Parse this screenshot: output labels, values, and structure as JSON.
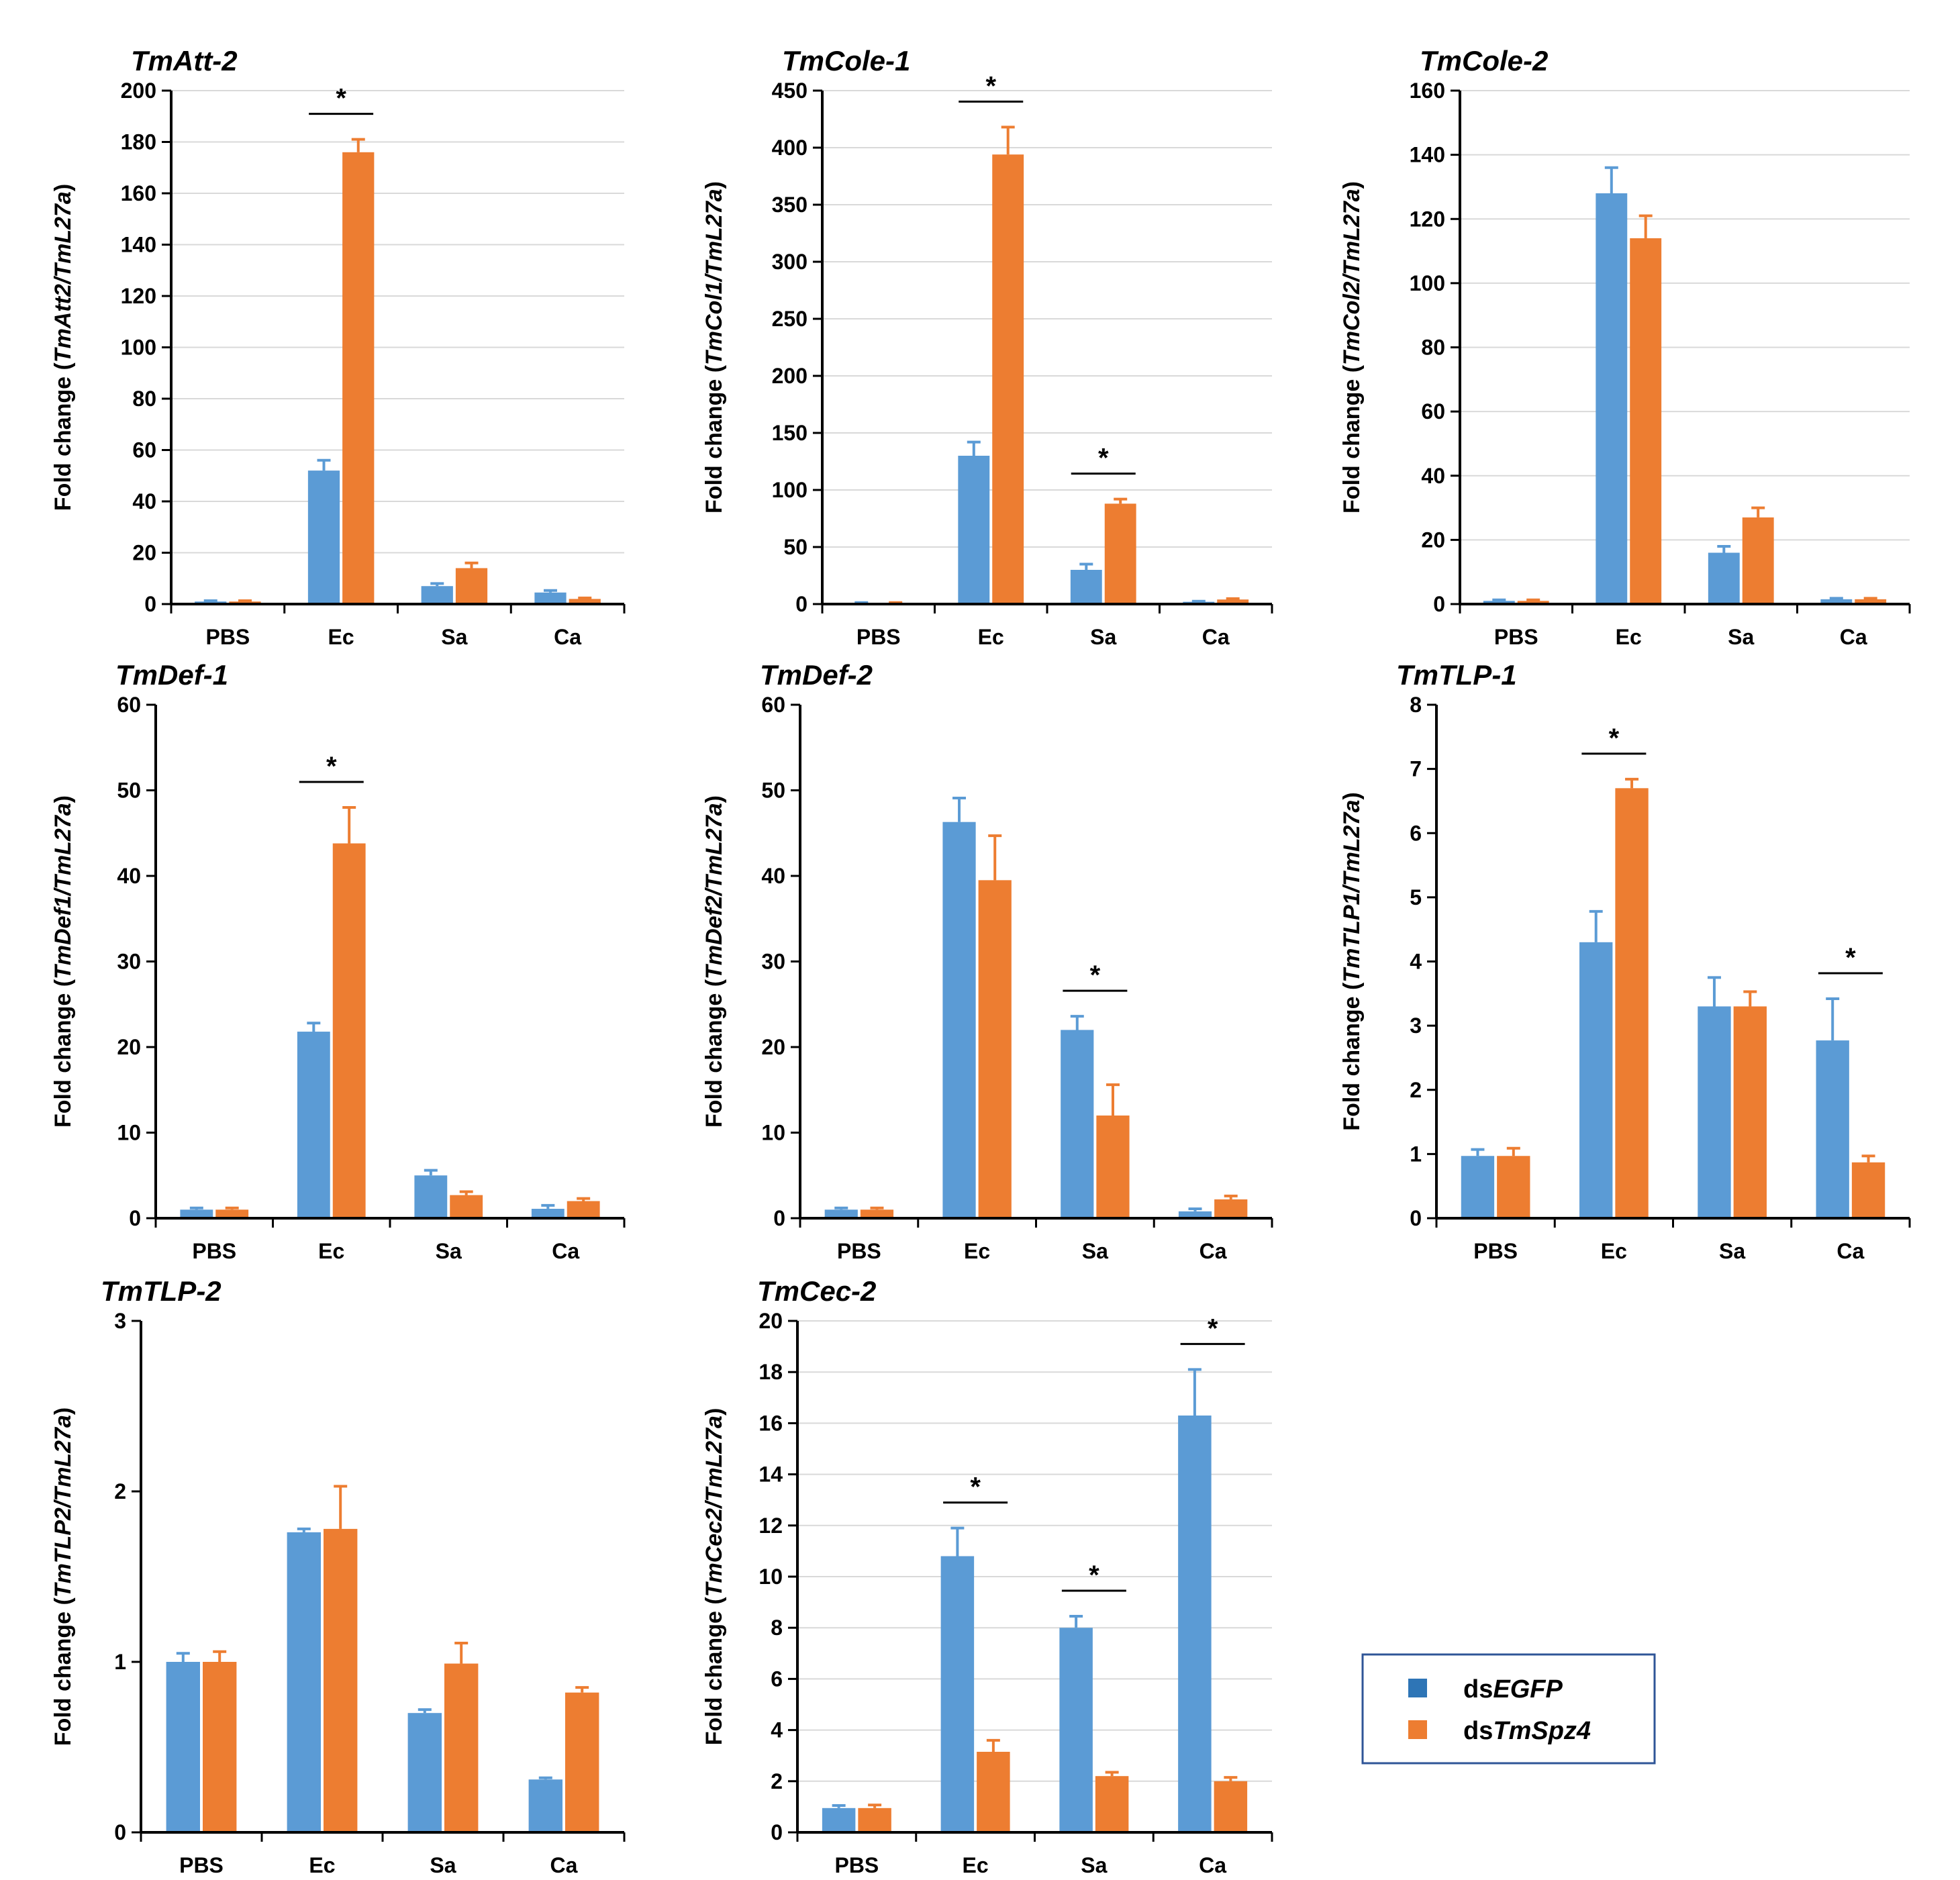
{
  "colors": {
    "dsEGFP": "#5B9BD5",
    "dsTmSpz4": "#ED7D31",
    "legend_dsEGFP": "#2E75B6",
    "grid": "#d9d9d9"
  },
  "legend": [
    {
      "prefix": "ds",
      "italic": "EGFP",
      "color": "#2E75B6"
    },
    {
      "prefix": "ds",
      "italic": "TmSpz4",
      "color": "#ED7D31"
    }
  ],
  "chart_data": [
    {
      "type": "bar",
      "title": "TmAtt-2",
      "ylabel": {
        "prefix": "Fold change (",
        "italic": "TmAtt2/TmL27a",
        "suffix": ")"
      },
      "categories": [
        "PBS",
        "Ec",
        "Sa",
        "Ca"
      ],
      "ylim": [
        0,
        200
      ],
      "yticks": [
        0,
        20,
        40,
        60,
        80,
        100,
        120,
        140,
        160,
        180,
        200
      ],
      "grid": true,
      "series": [
        {
          "values": [
            1,
            52,
            7,
            4.5
          ],
          "errors": [
            0.3,
            4,
            1,
            0.8
          ]
        },
        {
          "values": [
            1,
            176,
            14,
            2
          ],
          "errors": [
            0.3,
            5,
            2,
            0.4
          ]
        }
      ],
      "significance": [
        "",
        "*",
        "",
        ""
      ]
    },
    {
      "type": "bar",
      "title": "TmCole-1",
      "ylabel": {
        "prefix": "Fold change (",
        "italic": "TmCol1/TmL27a",
        "suffix": ")"
      },
      "categories": [
        "PBS",
        "Ec",
        "Sa",
        "Ca"
      ],
      "ylim": [
        0,
        450
      ],
      "yticks": [
        0,
        50,
        100,
        150,
        200,
        250,
        300,
        350,
        400,
        450
      ],
      "grid": true,
      "series": [
        {
          "values": [
            1,
            130,
            30,
            2
          ],
          "errors": [
            0.3,
            12,
            5,
            0.5
          ]
        },
        {
          "values": [
            1,
            394,
            88,
            4
          ],
          "errors": [
            0.3,
            24,
            4,
            0.8
          ]
        }
      ],
      "significance": [
        "",
        "*",
        "*",
        ""
      ]
    },
    {
      "type": "bar",
      "title": "TmCole-2",
      "ylabel": {
        "prefix": "Fold change (",
        "italic": "TmCol2/TmL27a",
        "suffix": ")"
      },
      "categories": [
        "PBS",
        "Ec",
        "Sa",
        "Ca"
      ],
      "ylim": [
        0,
        160
      ],
      "yticks": [
        0,
        20,
        40,
        60,
        80,
        100,
        120,
        140,
        160
      ],
      "grid": true,
      "series": [
        {
          "values": [
            1,
            128,
            16,
            1.5
          ],
          "errors": [
            0.3,
            8,
            2,
            0.3
          ]
        },
        {
          "values": [
            1,
            114,
            27,
            1.5
          ],
          "errors": [
            0.3,
            7,
            3,
            0.3
          ]
        }
      ],
      "significance": [
        "",
        "",
        "",
        ""
      ]
    },
    {
      "type": "bar",
      "title": "TmDef-1",
      "ylabel": {
        "prefix": "Fold change (",
        "italic": "TmDef1/TmL27a",
        "suffix": ")"
      },
      "categories": [
        "PBS",
        "Ec",
        "Sa",
        "Ca"
      ],
      "ylim": [
        0,
        60
      ],
      "yticks": [
        0,
        10,
        20,
        30,
        40,
        50,
        60
      ],
      "grid": false,
      "series": [
        {
          "values": [
            1,
            21.8,
            5,
            1.1
          ],
          "errors": [
            0.2,
            1,
            0.6,
            0.4
          ]
        },
        {
          "values": [
            1,
            43.8,
            2.7,
            2
          ],
          "errors": [
            0.2,
            4.2,
            0.4,
            0.3
          ]
        }
      ],
      "significance": [
        "",
        "*",
        "",
        ""
      ]
    },
    {
      "type": "bar",
      "title": "TmDef-2",
      "ylabel": {
        "prefix": "Fold change (",
        "italic": "TmDef2/TmL27a",
        "suffix": ")"
      },
      "categories": [
        "PBS",
        "Ec",
        "Sa",
        "Ca"
      ],
      "ylim": [
        0,
        60
      ],
      "yticks": [
        0,
        10,
        20,
        30,
        40,
        50,
        60
      ],
      "grid": false,
      "series": [
        {
          "values": [
            1,
            46.3,
            22,
            0.8
          ],
          "errors": [
            0.2,
            2.8,
            1.6,
            0.3
          ]
        },
        {
          "values": [
            1,
            39.5,
            12,
            2.2
          ],
          "errors": [
            0.2,
            5.2,
            3.6,
            0.4
          ]
        }
      ],
      "significance": [
        "",
        "",
        "*",
        ""
      ]
    },
    {
      "type": "bar",
      "title": "TmTLP-1",
      "ylabel": {
        "prefix": "Fold change (",
        "italic": "TmTLP1/TmL27a",
        "suffix": ")"
      },
      "categories": [
        "PBS",
        "Ec",
        "Sa",
        "Ca"
      ],
      "ylim": [
        0,
        8
      ],
      "yticks": [
        0,
        1,
        2,
        3,
        4,
        5,
        6,
        7,
        8
      ],
      "grid": false,
      "series": [
        {
          "values": [
            0.97,
            4.3,
            3.3,
            2.77
          ],
          "errors": [
            0.1,
            0.48,
            0.45,
            0.65
          ]
        },
        {
          "values": [
            0.97,
            6.7,
            3.3,
            0.87
          ],
          "errors": [
            0.12,
            0.14,
            0.23,
            0.1
          ]
        }
      ],
      "significance": [
        "",
        "*",
        "",
        "*"
      ]
    },
    {
      "type": "bar",
      "title": "TmTLP-2",
      "ylabel": {
        "prefix": "Fold change (",
        "italic": "TmTLP2/TmL27a",
        "suffix": ")"
      },
      "categories": [
        "PBS",
        "Ec",
        "Sa",
        "Ca"
      ],
      "ylim": [
        0,
        3
      ],
      "yticks": [
        0,
        1,
        2,
        3
      ],
      "grid": false,
      "series": [
        {
          "values": [
            1,
            1.76,
            0.7,
            0.31
          ],
          "errors": [
            0.05,
            0.02,
            0.02,
            0.01
          ]
        },
        {
          "values": [
            1,
            1.78,
            0.99,
            0.82
          ],
          "errors": [
            0.06,
            0.25,
            0.12,
            0.03
          ]
        }
      ],
      "significance": [
        "",
        "",
        "",
        ""
      ]
    },
    {
      "type": "bar",
      "title": "TmCec-2",
      "ylabel": {
        "prefix": "Fold change (",
        "italic": "TmCec2/TmL27a",
        "suffix": ")"
      },
      "categories": [
        "PBS",
        "Ec",
        "Sa",
        "Ca"
      ],
      "ylim": [
        0,
        20
      ],
      "yticks": [
        0,
        2,
        4,
        6,
        8,
        10,
        12,
        14,
        16,
        18,
        20
      ],
      "grid": true,
      "series": [
        {
          "values": [
            0.95,
            10.8,
            8,
            16.3
          ],
          "errors": [
            0.1,
            1.1,
            0.45,
            1.8
          ]
        },
        {
          "values": [
            0.95,
            3.15,
            2.2,
            2
          ],
          "errors": [
            0.12,
            0.45,
            0.15,
            0.15
          ]
        }
      ],
      "significance": [
        "",
        "*",
        "*",
        "*"
      ]
    }
  ]
}
